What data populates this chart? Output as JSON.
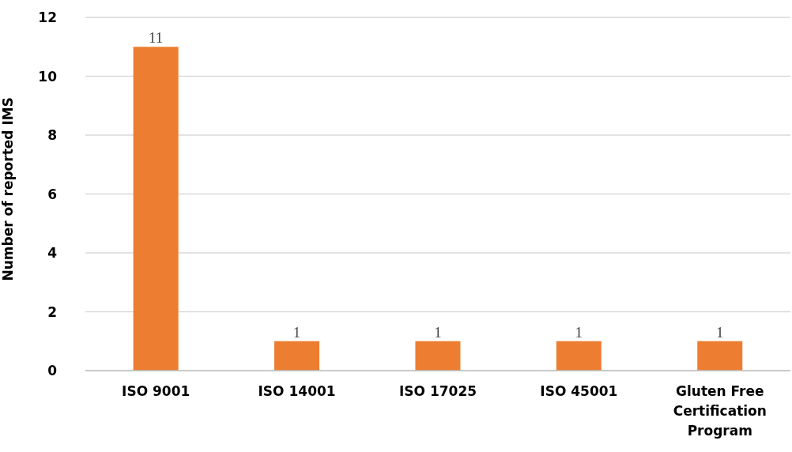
{
  "chart_data": {
    "type": "bar",
    "ylabel": "Number of reported IMS",
    "categories": [
      "ISO 9001",
      "ISO 14001",
      "ISO 17025",
      "ISO 45001",
      "Gluten Free Certification Program"
    ],
    "values": [
      11,
      1,
      1,
      1,
      1
    ],
    "color": "#ed7d31",
    "data_labels": true,
    "ylim": [
      0,
      12
    ],
    "yticks": [
      0,
      2,
      4,
      6,
      8,
      10,
      12
    ],
    "grid": "y"
  }
}
